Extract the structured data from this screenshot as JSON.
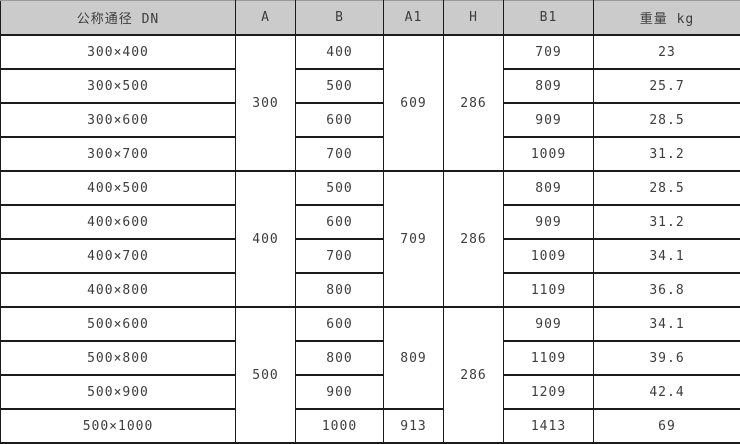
{
  "colors": {
    "header_bg": "#cbcbcb",
    "border_color": "#1b1b1b",
    "text_color": "#3d3d3d",
    "body_bg": "#ffffff"
  },
  "table": {
    "headers": [
      "公称通径 DN",
      "A",
      "B",
      "A1",
      "H",
      "B1",
      "重量 kg"
    ],
    "groups": [
      {
        "A": "300",
        "A1": "609",
        "H": "286",
        "rows": [
          {
            "dn": "300×400",
            "b": "400",
            "b1": "709",
            "kg": "23"
          },
          {
            "dn": "300×500",
            "b": "500",
            "b1": "809",
            "kg": "25.7"
          },
          {
            "dn": "300×600",
            "b": "600",
            "b1": "909",
            "kg": "28.5"
          },
          {
            "dn": "300×700",
            "b": "700",
            "b1": "1009",
            "kg": "31.2"
          }
        ]
      },
      {
        "A": "400",
        "A1": "709",
        "H": "286",
        "rows": [
          {
            "dn": "400×500",
            "b": "500",
            "b1": "809",
            "kg": "28.5"
          },
          {
            "dn": "400×600",
            "b": "600",
            "b1": "909",
            "kg": "31.2"
          },
          {
            "dn": "400×700",
            "b": "700",
            "b1": "1009",
            "kg": "34.1"
          },
          {
            "dn": "400×800",
            "b": "800",
            "b1": "1109",
            "kg": "36.8"
          }
        ]
      },
      {
        "A": "500",
        "A1": "809",
        "A1_last": "913",
        "H": "286",
        "rows": [
          {
            "dn": "500×600",
            "b": "600",
            "b1": "909",
            "kg": "34.1"
          },
          {
            "dn": "500×800",
            "b": "800",
            "b1": "1109",
            "kg": "39.6"
          },
          {
            "dn": "500×900",
            "b": "900",
            "b1": "1209",
            "kg": "42.4"
          },
          {
            "dn": "500×1000",
            "b": "1000",
            "b1": "1413",
            "kg": "69"
          }
        ]
      }
    ]
  }
}
